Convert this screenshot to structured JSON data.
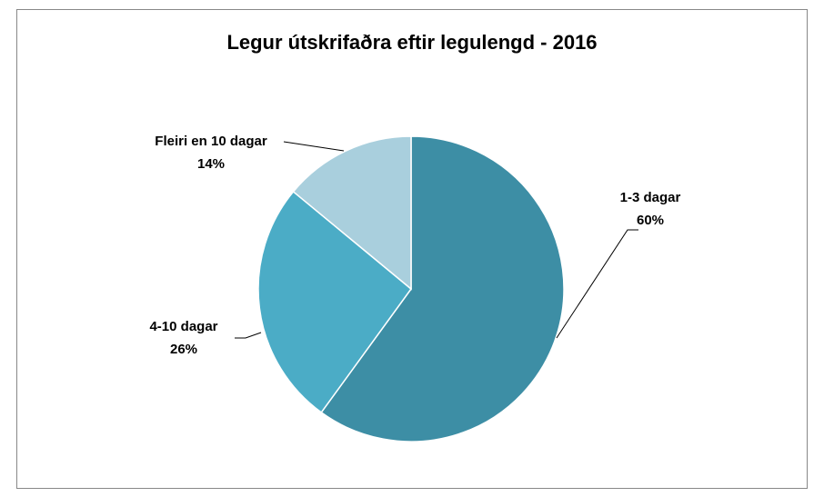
{
  "chart_data": {
    "type": "pie",
    "title": "Legur útskrifaðra eftir legulengd - 2016",
    "categories": [
      "1-3 dagar",
      "4-10 dagar",
      "Fleiri en 10 dagar"
    ],
    "values": [
      60,
      26,
      14
    ],
    "value_labels": [
      "60%",
      "26%",
      "14%"
    ],
    "colors": [
      "#3d8ea5",
      "#4bacc6",
      "#a9cfdd"
    ]
  }
}
